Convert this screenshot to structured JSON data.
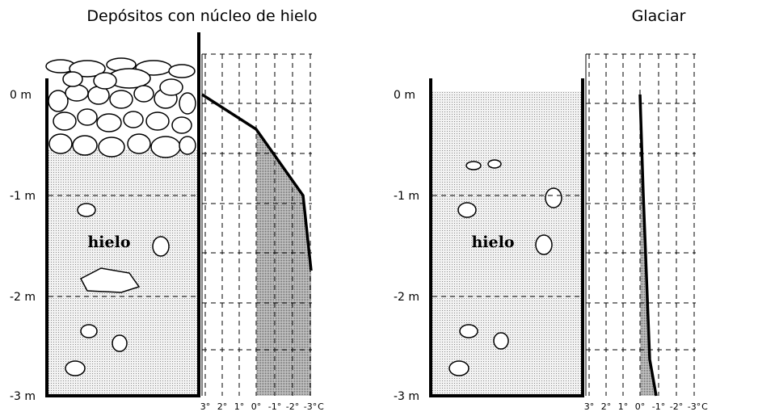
{
  "panels": [
    {
      "title": "Depósitos con núcleo de hielo",
      "label": "hielo",
      "depth_labels": [
        "0 m",
        "-1 m",
        "-2 m",
        "-3 m"
      ],
      "temp_labels": [
        "3°",
        "2°",
        "1°",
        "0°",
        "-1°",
        "-2°",
        "-3°"
      ],
      "unit": "C"
    },
    {
      "title": "Glaciar",
      "label": "hielo",
      "depth_labels": [
        "0 m",
        "-1 m",
        "-2 m",
        "-3 m"
      ],
      "temp_labels": [
        "3°",
        "2°",
        "1°",
        "0°",
        "-1°",
        "-2°",
        "-3°"
      ],
      "unit": "C"
    }
  ]
}
